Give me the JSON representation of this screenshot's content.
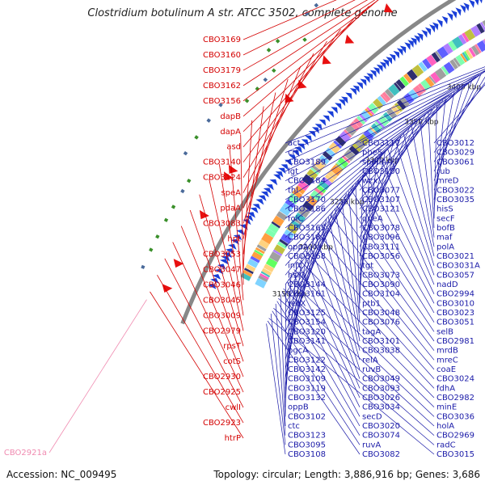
{
  "title": "Clostridium botulinum A str. ATCC 3502, complete genome",
  "accession": "Accession: NC_009495",
  "summary": "Topology: circular; Length: 3,886,916 bp; Genes: 3,686",
  "colors": {
    "forward_gene": "#1a3fd8",
    "reverse_gene": "#e81010",
    "label_red": "#d40000",
    "label_blue": "#1a1aa8",
    "label_pink": "#f08ab0",
    "backbone": "#888888"
  },
  "kbp_ticks": [
    "3150 kbp",
    "3200 kbp",
    "3250 kbp",
    "3300 kbp",
    "3350 kbp",
    "3400 kbp",
    "3450 kbp"
  ],
  "red_labels": [
    "CBO3169",
    "CBO3160",
    "CBO3179",
    "CBO3162",
    "CBO3156",
    "dapB",
    "dapA",
    "asd",
    "CBO3140",
    "CBO3124",
    "speA",
    "pdaA",
    "CBO3083",
    "hpt",
    "CBO3053",
    "CBO3047",
    "CBO3046",
    "CBO3045",
    "CBO3009",
    "CBO2979",
    "rpsT",
    "cotS",
    "CBO2930",
    "CBO2925",
    "cwlI",
    "CBO2923",
    "htrP"
  ],
  "pink_labels": [
    "CBO2921a"
  ],
  "blue_labels": [
    "act",
    "crt",
    "CBO3189",
    "lgt",
    "CBO3184",
    "thl",
    "CBO3170",
    "CBO3186",
    "folC",
    "CBO3165",
    "CBO3181",
    "oppA",
    "CBO3168",
    "infC",
    "hslO",
    "CBO3144",
    "CBO3161",
    "recX",
    "CBO3125",
    "CBO3154",
    "CBO3120",
    "CBO3141",
    "pgcA",
    "CBO3122",
    "CBO3142",
    "CBO3109",
    "CBO3119",
    "CBO3132",
    "oppB",
    "CBO3102",
    "ctc",
    "CBO3123",
    "CBO3095",
    "CBO3108",
    "CBO3117",
    "pheS",
    "spoIIAA",
    "CBO3100",
    "wzx",
    "CBO3077",
    "CBO3107",
    "CBO3121",
    "queA",
    "CBO3078",
    "CBO3096",
    "CBO3111",
    "CBO3056",
    "tgt",
    "CBO3073",
    "CBO3090",
    "CBO3104",
    "ptb1",
    "CBO3048",
    "CBO3076",
    "tagA",
    "CBO3101",
    "CBO3038",
    "relA",
    "ruvB",
    "CBO3049",
    "CBO3093",
    "CBO3026",
    "CBO3034",
    "secD",
    "CBO3020",
    "CBO3074",
    "ruvA",
    "CBO3082",
    "CBO3012",
    "CBO3029",
    "CBO3061",
    "rub",
    "mreD",
    "CBO3022",
    "CBO3035",
    "hisS",
    "secF",
    "bofB",
    "maf",
    "polA",
    "CBO3021",
    "CBO3031A",
    "CBO3057",
    "nadD",
    "CBO2994",
    "CBO3010",
    "CBO3023",
    "CBO3051",
    "selB",
    "CBO2981",
    "mrdB",
    "mreC",
    "coaE",
    "CBO3024",
    "fdhA",
    "CBO2982",
    "minE",
    "CBO3036",
    "holA",
    "CBO2969",
    "radC",
    "CBO3015"
  ]
}
